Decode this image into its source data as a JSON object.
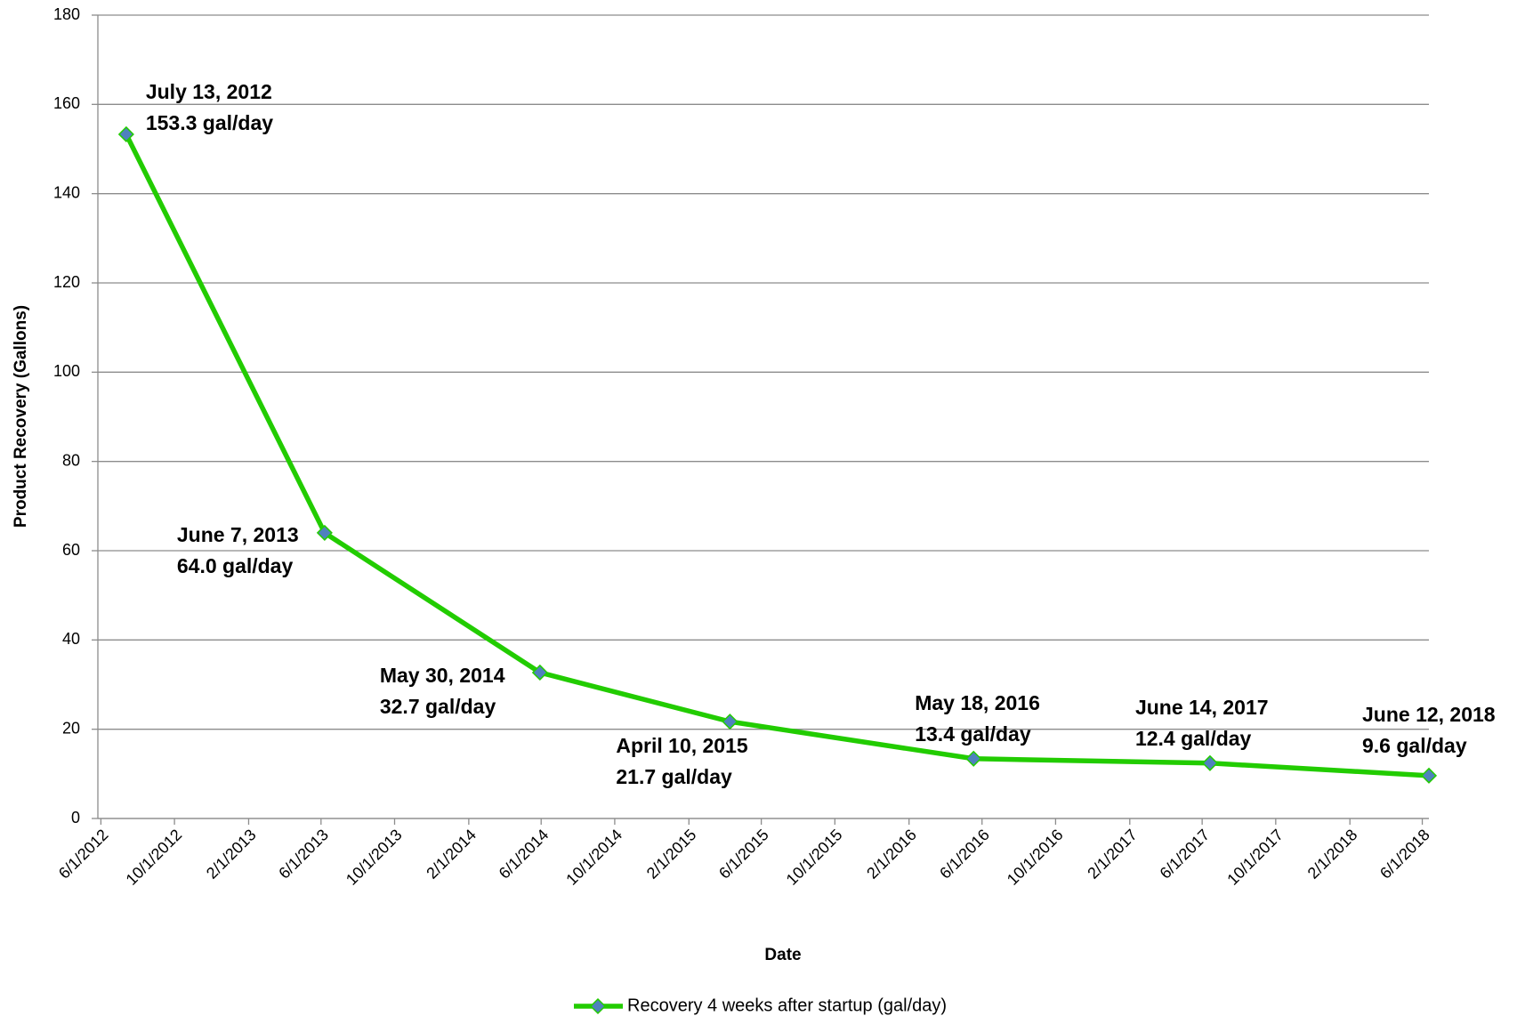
{
  "chart_data": {
    "type": "line",
    "x_label": "Date",
    "y_label": "Product Recovery (Gallons)",
    "x": [
      "2012-07-13",
      "2013-06-07",
      "2014-05-30",
      "2015-04-10",
      "2016-05-18",
      "2017-06-14",
      "2018-06-12"
    ],
    "series": [
      {
        "name": "Recovery 4 weeks after startup (gal/day)",
        "color": "#22cc00",
        "marker_color": "#4f81bd",
        "values": [
          153.3,
          64.0,
          32.7,
          21.7,
          13.4,
          12.4,
          9.6
        ],
        "value_labels": [
          "153.3 gal/day",
          "64.0 gal/day",
          "32.7 gal/day",
          "21.7 gal/day",
          "13.4 gal/day",
          "12.4 gal/day",
          "9.6 gal/day"
        ],
        "date_labels": [
          "July 13, 2012",
          "June 7, 2013",
          "May 30, 2014",
          "April 10, 2015",
          "May 18, 2016",
          "June 14, 2017",
          "June 12, 2018"
        ]
      }
    ],
    "xlim": [
      "2012-05-27",
      "2018-06-12"
    ],
    "xticks": [
      {
        "value": "2012-06-01",
        "label": "6/1/2012"
      },
      {
        "value": "2012-10-01",
        "label": "10/1/2012"
      },
      {
        "value": "2013-02-01",
        "label": "2/1/2013"
      },
      {
        "value": "2013-06-01",
        "label": "6/1/2013"
      },
      {
        "value": "2013-10-01",
        "label": "10/1/2013"
      },
      {
        "value": "2014-02-01",
        "label": "2/1/2014"
      },
      {
        "value": "2014-06-01",
        "label": "6/1/2014"
      },
      {
        "value": "2014-10-01",
        "label": "10/1/2014"
      },
      {
        "value": "2015-02-01",
        "label": "2/1/2015"
      },
      {
        "value": "2015-06-01",
        "label": "6/1/2015"
      },
      {
        "value": "2015-10-01",
        "label": "10/1/2015"
      },
      {
        "value": "2016-02-01",
        "label": "2/1/2016"
      },
      {
        "value": "2016-06-01",
        "label": "6/1/2016"
      },
      {
        "value": "2016-10-01",
        "label": "10/1/2016"
      },
      {
        "value": "2017-02-01",
        "label": "2/1/2017"
      },
      {
        "value": "2017-06-01",
        "label": "6/1/2017"
      },
      {
        "value": "2017-10-01",
        "label": "10/1/2017"
      },
      {
        "value": "2018-02-01",
        "label": "2/1/2018"
      },
      {
        "value": "2018-06-01",
        "label": "6/1/2018"
      }
    ],
    "ylim": [
      0,
      180
    ],
    "yticks": [
      0,
      20,
      40,
      60,
      80,
      100,
      120,
      140,
      160,
      180
    ],
    "grid": true,
    "legend": "bottom"
  }
}
